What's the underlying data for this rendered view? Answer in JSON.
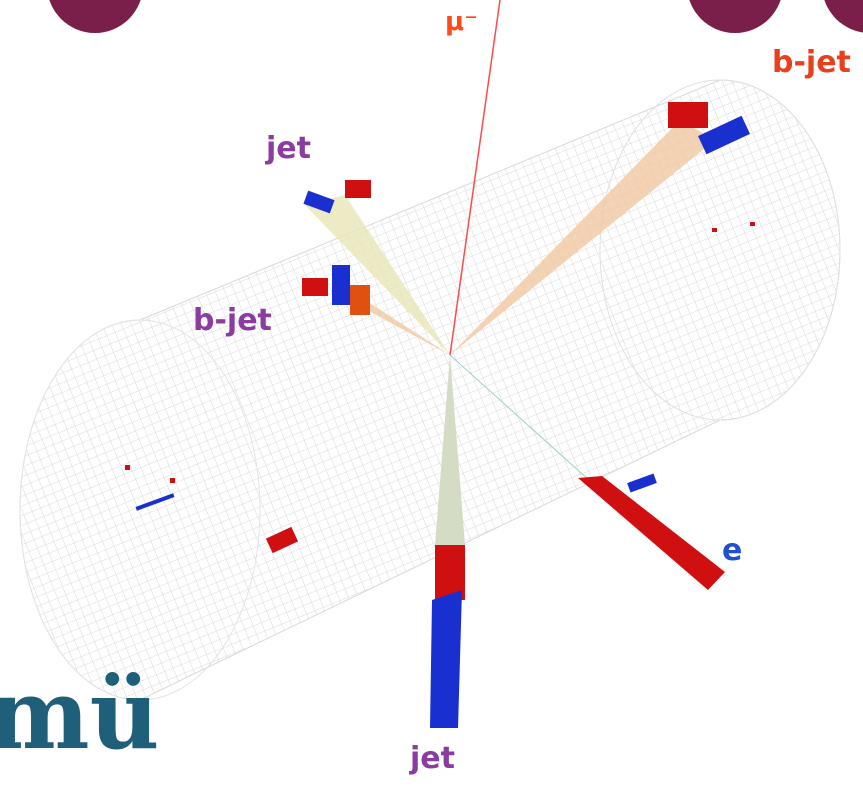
{
  "labels": {
    "muon": "μ⁻",
    "bjet_top_right": "b-jet",
    "jet_upper": "jet",
    "bjet_left": "b-jet",
    "electron": "e",
    "jet_bottom": "jet"
  },
  "caption_fragment": "mü"
}
